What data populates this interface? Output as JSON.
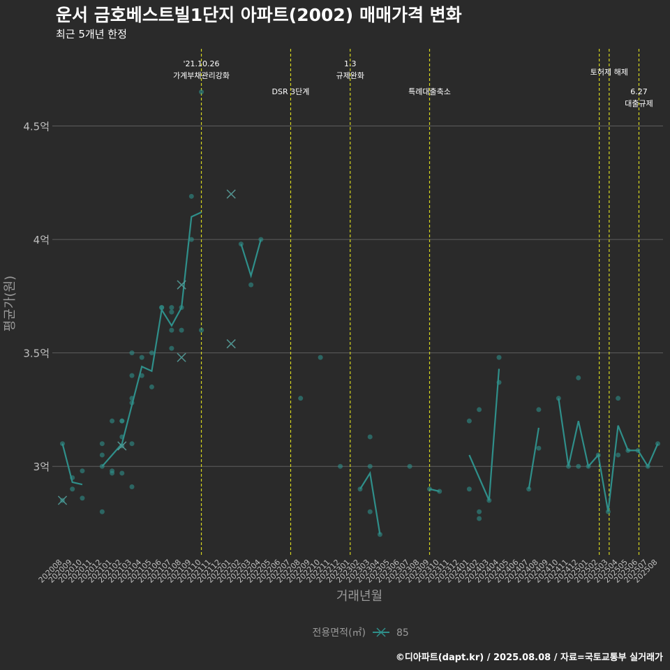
{
  "page": {
    "title": "운서 금호베스트빌1단지 아파트(2002) 매매가격 변화",
    "subtitle": "최근 5개년 한정",
    "caption": "©디아파트(dapt.kr) / 2025.08.08 / 자료=국토교통부 실거래가"
  },
  "colors": {
    "background": "#2a2a2a",
    "series": "#2f8f8a",
    "event_line": "#d6d61f",
    "grid": "#5e5e5e",
    "text": "#ffffff",
    "axis_text": "#bfbfbf"
  },
  "chart_data": {
    "type": "line",
    "xlabel": "거래년월",
    "ylabel": "평균가(원)",
    "ylim": [
      2.61,
      4.84
    ],
    "yticks": [
      {
        "value": 3.0,
        "label": "3억"
      },
      {
        "value": 3.5,
        "label": "3.5억"
      },
      {
        "value": 4.0,
        "label": "4억"
      },
      {
        "value": 4.5,
        "label": "4.5억"
      }
    ],
    "categories": [
      "202008",
      "202009",
      "202010",
      "202011",
      "202012",
      "202101",
      "202102",
      "202103",
      "202104",
      "202105",
      "202106",
      "202107",
      "202108",
      "202109",
      "202110",
      "202111",
      "202112",
      "202201",
      "202202",
      "202203",
      "202204",
      "202205",
      "202206",
      "202207",
      "202208",
      "202209",
      "202210",
      "202211",
      "202212",
      "202301",
      "202302",
      "202303",
      "202304",
      "202305",
      "202306",
      "202307",
      "202308",
      "202309",
      "202310",
      "202311",
      "202312",
      "202401",
      "202402",
      "202403",
      "202404",
      "202405",
      "202406",
      "202407",
      "202408",
      "202409",
      "202410",
      "202411",
      "202412",
      "202501",
      "202502",
      "202503",
      "202504",
      "202505",
      "202506",
      "202507",
      "202508"
    ],
    "legend": {
      "title": "전용면적(㎡)",
      "label": "85",
      "position": "bottom"
    },
    "series": [
      {
        "name": "85",
        "line_segments": [
          [
            [
              0,
              3.1
            ],
            [
              1,
              2.93
            ],
            [
              2,
              2.92
            ]
          ],
          [
            [
              4,
              3.0
            ],
            [
              5,
              3.05
            ],
            [
              6,
              3.1
            ],
            [
              7,
              3.27
            ],
            [
              8,
              3.44
            ],
            [
              9,
              3.42
            ],
            [
              10,
              3.69
            ],
            [
              11,
              3.62
            ],
            [
              12,
              3.7
            ],
            [
              13,
              4.1
            ],
            [
              14,
              4.12
            ]
          ],
          [
            [
              18,
              3.98
            ],
            [
              19,
              3.84
            ],
            [
              20,
              4.0
            ]
          ],
          [
            [
              30,
              2.9
            ],
            [
              31,
              2.97
            ],
            [
              32,
              2.7
            ]
          ],
          [
            [
              37,
              2.9
            ],
            [
              38,
              2.89
            ]
          ],
          [
            [
              41,
              3.05
            ],
            [
              42,
              2.95
            ],
            [
              43,
              2.85
            ],
            [
              44,
              3.43
            ]
          ],
          [
            [
              47,
              2.9
            ],
            [
              48,
              3.17
            ]
          ],
          [
            [
              50,
              3.3
            ],
            [
              51,
              3.0
            ],
            [
              52,
              3.2
            ],
            [
              53,
              3.0
            ],
            [
              54,
              3.05
            ],
            [
              55,
              2.8
            ],
            [
              56,
              3.18
            ],
            [
              57,
              3.07
            ],
            [
              58,
              3.07
            ],
            [
              59,
              3.0
            ],
            [
              60,
              3.1
            ]
          ]
        ],
        "points": [
          [
            0,
            3.1
          ],
          [
            0,
            2.85
          ],
          [
            1,
            2.95
          ],
          [
            1,
            2.9
          ],
          [
            2,
            2.98
          ],
          [
            2,
            2.86
          ],
          [
            4,
            3.1
          ],
          [
            4,
            3.05
          ],
          [
            4,
            2.8
          ],
          [
            4,
            3.0
          ],
          [
            5,
            3.2
          ],
          [
            5,
            2.98
          ],
          [
            5,
            2.97
          ],
          [
            6,
            3.2
          ],
          [
            6,
            3.2
          ],
          [
            6,
            3.13
          ],
          [
            6,
            3.09
          ],
          [
            6,
            2.97
          ],
          [
            7,
            3.5
          ],
          [
            7,
            3.4
          ],
          [
            7,
            3.3
          ],
          [
            7,
            3.28
          ],
          [
            7,
            3.1
          ],
          [
            7,
            2.91
          ],
          [
            8,
            3.48
          ],
          [
            8,
            3.4
          ],
          [
            9,
            3.5
          ],
          [
            9,
            3.35
          ],
          [
            10,
            3.7
          ],
          [
            10,
            3.7
          ],
          [
            11,
            3.7
          ],
          [
            11,
            3.68
          ],
          [
            11,
            3.6
          ],
          [
            11,
            3.52
          ],
          [
            12,
            3.7
          ],
          [
            12,
            3.6
          ],
          [
            13,
            4.19
          ],
          [
            13,
            4.0
          ],
          [
            14,
            4.65
          ],
          [
            14,
            3.6
          ],
          [
            18,
            3.98
          ],
          [
            19,
            3.8
          ],
          [
            20,
            4.0
          ],
          [
            24,
            3.3
          ],
          [
            26,
            3.48
          ],
          [
            28,
            3.0
          ],
          [
            30,
            2.9
          ],
          [
            31,
            3.13
          ],
          [
            31,
            3.0
          ],
          [
            31,
            2.8
          ],
          [
            32,
            2.7
          ],
          [
            35,
            3.0
          ],
          [
            37,
            2.9
          ],
          [
            38,
            2.89
          ],
          [
            41,
            3.2
          ],
          [
            41,
            2.9
          ],
          [
            42,
            3.25
          ],
          [
            42,
            2.8
          ],
          [
            42,
            2.77
          ],
          [
            43,
            2.85
          ],
          [
            44,
            3.48
          ],
          [
            44,
            3.37
          ],
          [
            47,
            2.9
          ],
          [
            48,
            3.25
          ],
          [
            48,
            3.08
          ],
          [
            50,
            3.3
          ],
          [
            51,
            3.0
          ],
          [
            52,
            3.39
          ],
          [
            52,
            3.0
          ],
          [
            53,
            3.0
          ],
          [
            54,
            3.05
          ],
          [
            55,
            2.8
          ],
          [
            56,
            3.3
          ],
          [
            56,
            3.05
          ],
          [
            57,
            3.07
          ],
          [
            58,
            3.07
          ],
          [
            59,
            3.0
          ],
          [
            60,
            3.1
          ]
        ],
        "x_markers": [
          [
            0,
            2.85
          ],
          [
            6,
            3.09
          ],
          [
            12,
            3.8
          ],
          [
            12,
            3.48
          ],
          [
            17,
            4.2
          ],
          [
            17,
            3.54
          ]
        ]
      }
    ],
    "events": [
      {
        "x": 14,
        "label_lines": [
          "'21.10.26",
          "가계부채관리강화"
        ],
        "label_row": 0
      },
      {
        "x": 23,
        "label_lines": [
          "DSR 3단계"
        ],
        "label_row": 1
      },
      {
        "x": 29,
        "label_lines": [
          "1.3",
          "규제완화"
        ],
        "label_row": 0
      },
      {
        "x": 37,
        "label_lines": [
          "특례대출축소"
        ],
        "label_row": 1
      },
      {
        "x": 54.1,
        "label_lines": [],
        "label_row": 0
      },
      {
        "x": 55.1,
        "label_lines": [
          "토허제 해제"
        ],
        "label_row": 0.3
      },
      {
        "x": 58.1,
        "label_lines": [
          "6.27",
          "대출규제"
        ],
        "label_row": 1
      }
    ]
  }
}
